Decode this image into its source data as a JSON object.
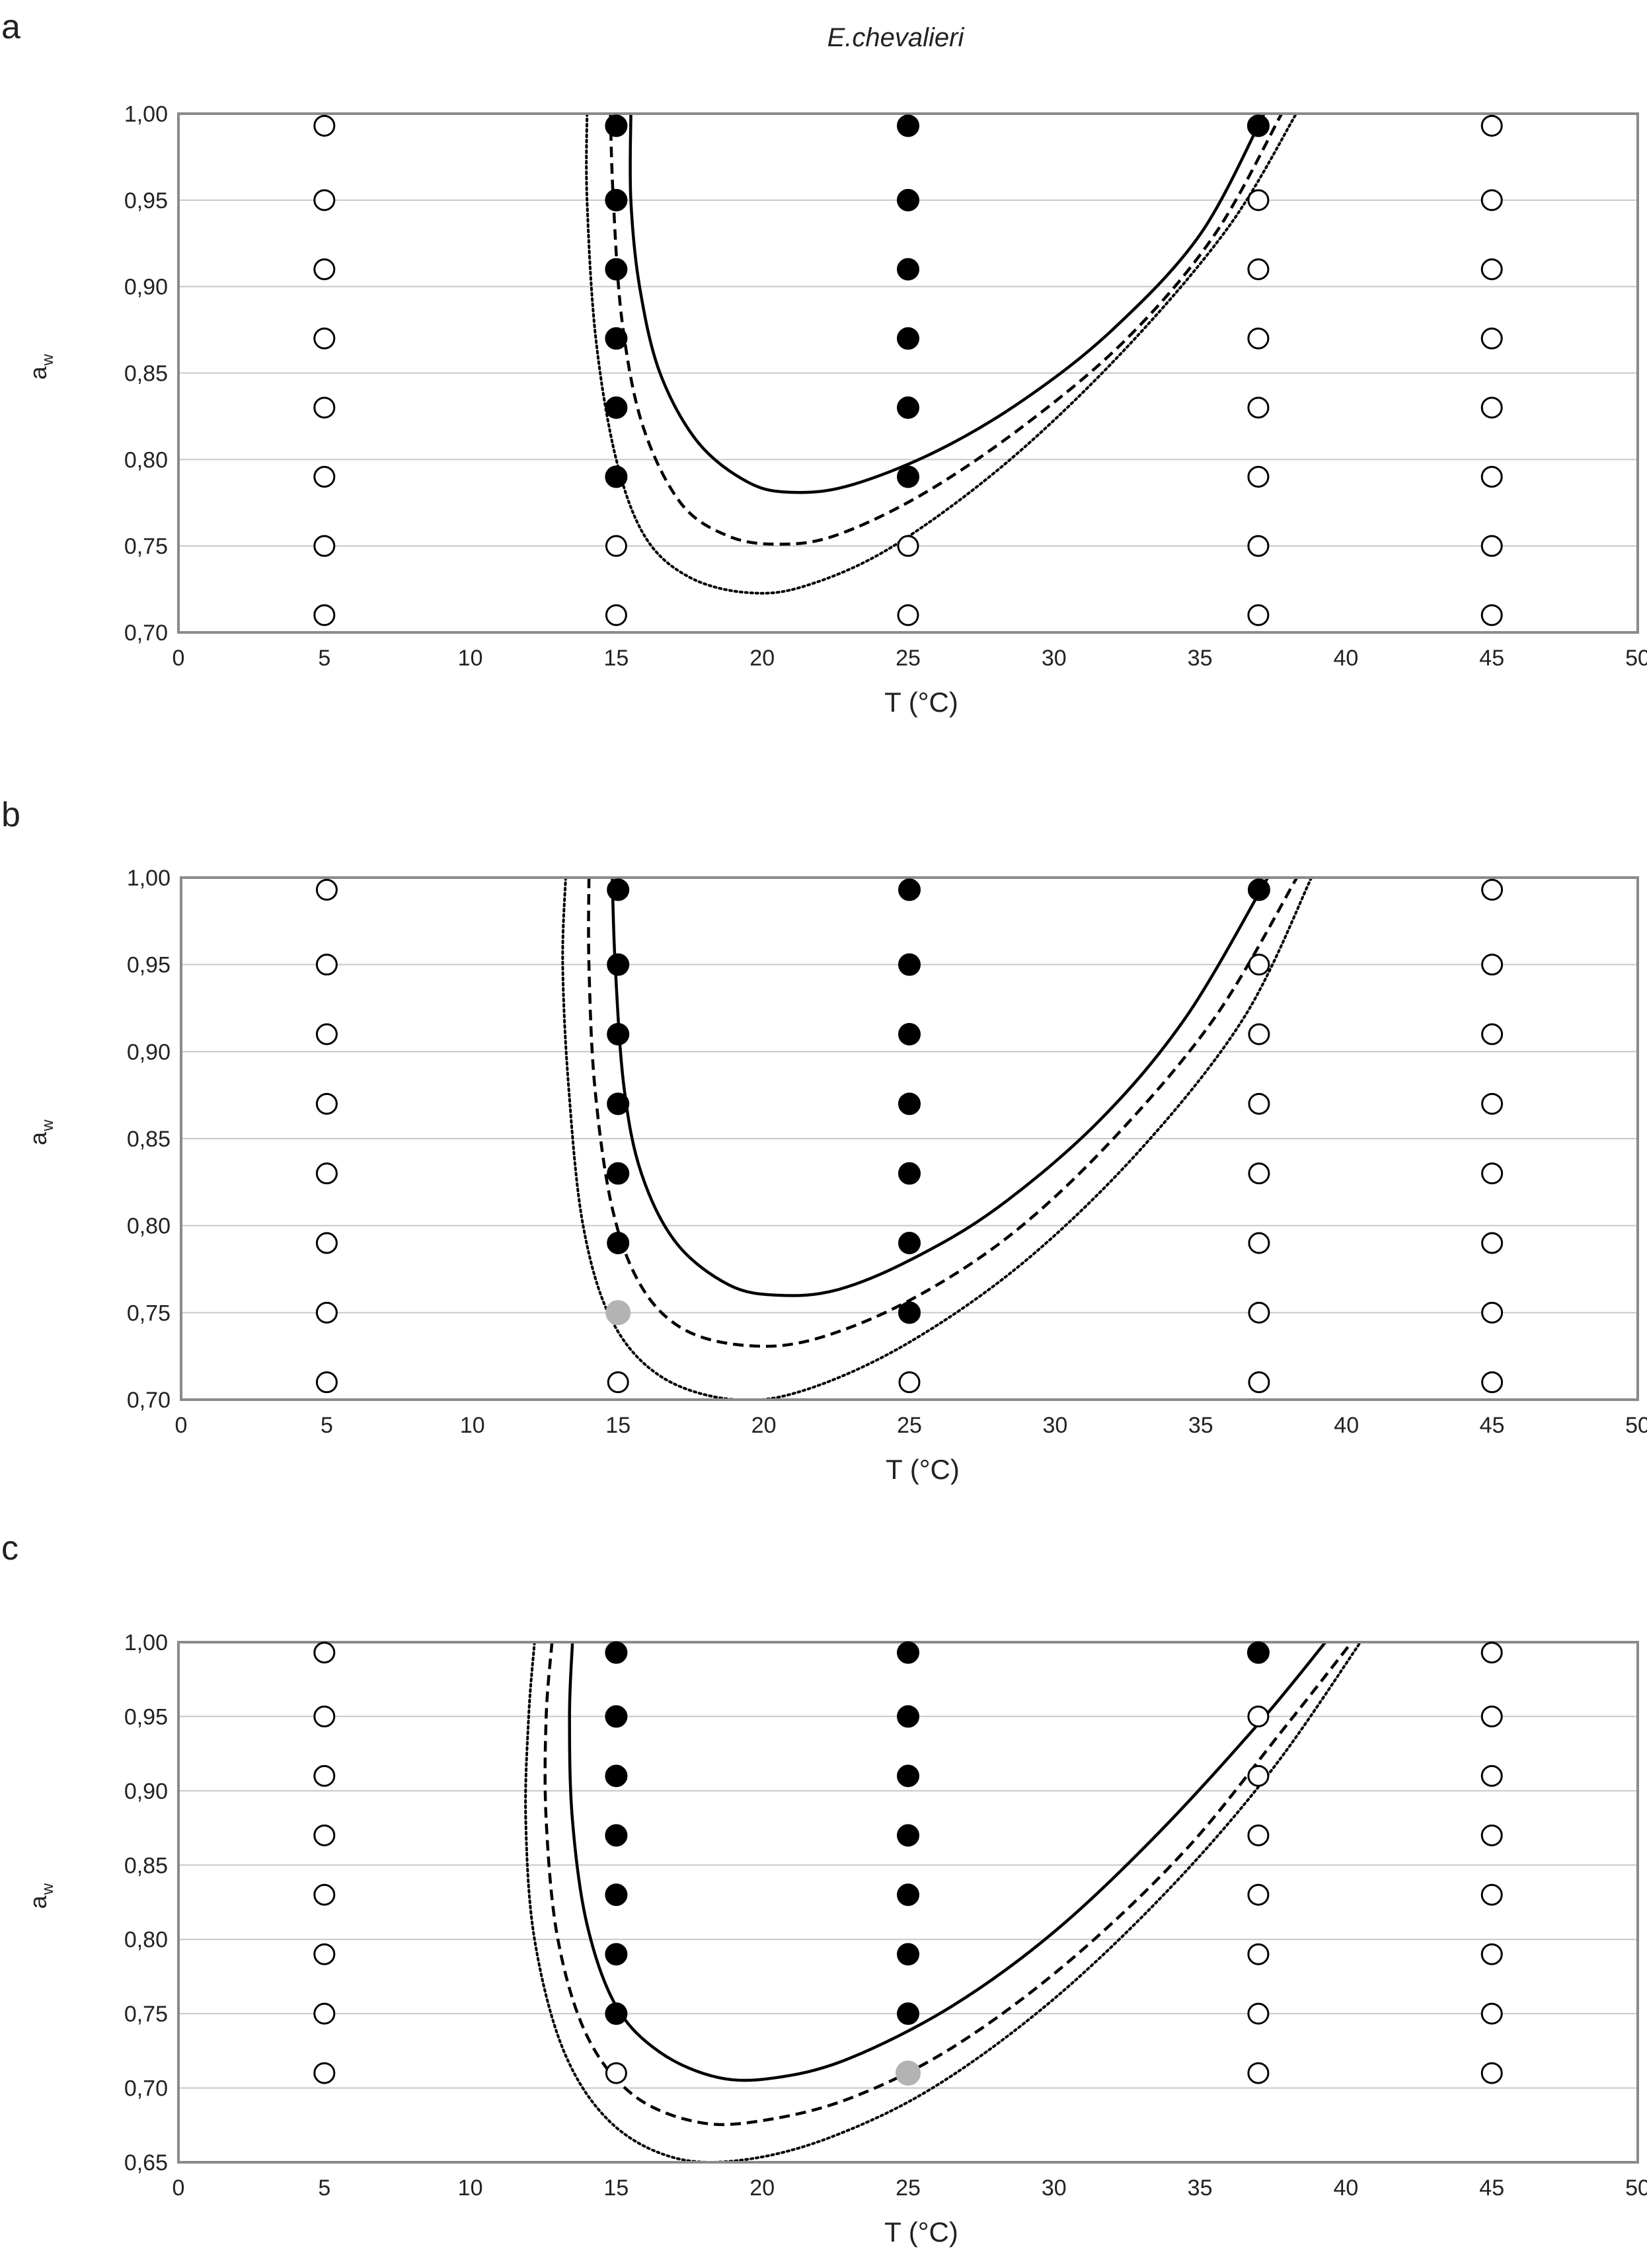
{
  "figure_title": "E.chevalieri",
  "colors": {
    "plot_border": "#8a8a8a",
    "grid": "#c8c8c8",
    "growth": "#000000",
    "partial": "#b3b3b3",
    "no_growth_edge": "#000000"
  },
  "chart_data": [
    {
      "panel_label": "a",
      "type": "scatter",
      "title": "E.chevalieri",
      "xlabel": "T (°C)",
      "ylabel": "a",
      "ylabel_sub": "w",
      "xlim": [
        0,
        50
      ],
      "ylim": [
        0.7,
        1.0
      ],
      "x_ticks": [
        0,
        5,
        10,
        15,
        20,
        25,
        30,
        35,
        40,
        45,
        50
      ],
      "x_tick_labels": [
        "0",
        "5",
        "10",
        "15",
        "20",
        "25",
        "30",
        "35",
        "40",
        "45",
        "50"
      ],
      "y_ticks": [
        0.7,
        0.75,
        0.8,
        0.85,
        0.9,
        0.95,
        1.0
      ],
      "y_tick_labels": [
        "0,70",
        "0,75",
        "0,80",
        "0,85",
        "0,90",
        "0,95",
        "1,00"
      ],
      "grid": true,
      "aw_levels": [
        0.993,
        0.95,
        0.91,
        0.87,
        0.83,
        0.79,
        0.75,
        0.71
      ],
      "columns": [
        {
          "T": 5,
          "states": [
            "none",
            "none",
            "none",
            "none",
            "none",
            "none",
            "none",
            "none"
          ]
        },
        {
          "T": 15,
          "states": [
            "growth",
            "growth",
            "growth",
            "growth",
            "growth",
            "growth",
            "none",
            "none"
          ]
        },
        {
          "T": 25,
          "states": [
            "growth",
            "growth",
            "growth",
            "growth",
            "growth",
            "growth",
            "none",
            "none"
          ]
        },
        {
          "T": 37,
          "states": [
            "growth",
            "none",
            "none",
            "none",
            "none",
            "none",
            "none",
            "none"
          ]
        },
        {
          "T": 45,
          "states": [
            "none",
            "none",
            "none",
            "none",
            "none",
            "none",
            "none",
            "none"
          ]
        }
      ],
      "boundaries": [
        {
          "style": "solid",
          "points": [
            [
              15.5,
              1.0
            ],
            [
              15.5,
              0.95
            ],
            [
              15.8,
              0.9
            ],
            [
              16.5,
              0.85
            ],
            [
              17.8,
              0.81
            ],
            [
              19.5,
              0.787
            ],
            [
              21.0,
              0.781
            ],
            [
              23.0,
              0.785
            ],
            [
              26.0,
              0.805
            ],
            [
              29.0,
              0.835
            ],
            [
              32.0,
              0.875
            ],
            [
              35.0,
              0.93
            ],
            [
              37.2,
              1.0
            ]
          ]
        },
        {
          "style": "dashed",
          "points": [
            [
              14.8,
              1.0
            ],
            [
              14.9,
              0.95
            ],
            [
              15.2,
              0.88
            ],
            [
              15.9,
              0.82
            ],
            [
              17.2,
              0.775
            ],
            [
              18.8,
              0.756
            ],
            [
              20.5,
              0.751
            ],
            [
              22.5,
              0.756
            ],
            [
              25.5,
              0.78
            ],
            [
              29.0,
              0.82
            ],
            [
              32.5,
              0.87
            ],
            [
              35.5,
              0.93
            ],
            [
              37.8,
              1.0
            ]
          ]
        },
        {
          "style": "dotted",
          "points": [
            [
              14.0,
              1.0
            ],
            [
              14.0,
              0.95
            ],
            [
              14.3,
              0.87
            ],
            [
              15.0,
              0.8
            ],
            [
              16.0,
              0.755
            ],
            [
              17.5,
              0.732
            ],
            [
              19.5,
              0.723
            ],
            [
              21.5,
              0.727
            ],
            [
              24.5,
              0.75
            ],
            [
              28.5,
              0.8
            ],
            [
              32.5,
              0.865
            ],
            [
              36.0,
              0.935
            ],
            [
              38.3,
              1.0
            ]
          ]
        }
      ]
    },
    {
      "panel_label": "b",
      "type": "scatter",
      "xlabel": "T (°C)",
      "ylabel": "a",
      "ylabel_sub": "w",
      "xlim": [
        0,
        50
      ],
      "ylim": [
        0.7,
        1.0
      ],
      "x_ticks": [
        0,
        5,
        10,
        15,
        20,
        25,
        30,
        35,
        40,
        45,
        50
      ],
      "x_tick_labels": [
        "0",
        "5",
        "10",
        "15",
        "20",
        "25",
        "30",
        "35",
        "40",
        "45",
        "50"
      ],
      "y_ticks": [
        0.7,
        0.75,
        0.8,
        0.85,
        0.9,
        0.95,
        1.0
      ],
      "y_tick_labels": [
        "0,70",
        "0,75",
        "0,80",
        "0,85",
        "0,90",
        "0,95",
        "1,00"
      ],
      "grid": true,
      "aw_levels": [
        0.993,
        0.95,
        0.91,
        0.87,
        0.83,
        0.79,
        0.75,
        0.71
      ],
      "columns": [
        {
          "T": 5,
          "states": [
            "none",
            "none",
            "none",
            "none",
            "none",
            "none",
            "none",
            "none"
          ]
        },
        {
          "T": 15,
          "states": [
            "growth",
            "growth",
            "growth",
            "growth",
            "growth",
            "growth",
            "partial",
            "none"
          ]
        },
        {
          "T": 25,
          "states": [
            "growth",
            "growth",
            "growth",
            "growth",
            "growth",
            "growth",
            "growth",
            "none"
          ]
        },
        {
          "T": 37,
          "states": [
            "growth",
            "none",
            "none",
            "none",
            "none",
            "none",
            "none",
            "none"
          ]
        },
        {
          "T": 45,
          "states": [
            "none",
            "none",
            "none",
            "none",
            "none",
            "none",
            "none",
            "none"
          ]
        }
      ],
      "boundaries": [
        {
          "style": "solid",
          "points": [
            [
              14.8,
              1.0
            ],
            [
              14.9,
              0.95
            ],
            [
              15.2,
              0.88
            ],
            [
              15.8,
              0.83
            ],
            [
              17.0,
              0.79
            ],
            [
              18.8,
              0.766
            ],
            [
              20.5,
              0.76
            ],
            [
              22.5,
              0.763
            ],
            [
              25.0,
              0.78
            ],
            [
              28.0,
              0.81
            ],
            [
              31.5,
              0.86
            ],
            [
              34.5,
              0.92
            ],
            [
              37.3,
              1.0
            ]
          ]
        },
        {
          "style": "dashed",
          "points": [
            [
              14.0,
              1.0
            ],
            [
              14.0,
              0.95
            ],
            [
              14.2,
              0.88
            ],
            [
              14.8,
              0.81
            ],
            [
              15.8,
              0.765
            ],
            [
              17.3,
              0.74
            ],
            [
              19.5,
              0.731
            ],
            [
              21.8,
              0.735
            ],
            [
              25.0,
              0.757
            ],
            [
              28.5,
              0.795
            ],
            [
              32.0,
              0.85
            ],
            [
              35.5,
              0.92
            ],
            [
              38.3,
              1.0
            ]
          ]
        },
        {
          "style": "dotted",
          "points": [
            [
              13.2,
              1.0
            ],
            [
              13.1,
              0.95
            ],
            [
              13.3,
              0.88
            ],
            [
              13.8,
              0.8
            ],
            [
              14.8,
              0.745
            ],
            [
              16.5,
              0.713
            ],
            [
              19.0,
              0.7
            ],
            [
              21.5,
              0.706
            ],
            [
              25.0,
              0.733
            ],
            [
              29.0,
              0.78
            ],
            [
              33.0,
              0.845
            ],
            [
              36.5,
              0.92
            ],
            [
              38.8,
              1.0
            ]
          ]
        }
      ]
    },
    {
      "panel_label": "c",
      "type": "scatter",
      "xlabel": "T (°C)",
      "ylabel": "a",
      "ylabel_sub": "w",
      "xlim": [
        0,
        50
      ],
      "ylim": [
        0.65,
        1.0
      ],
      "x_ticks": [
        0,
        5,
        10,
        15,
        20,
        25,
        30,
        35,
        40,
        45,
        50
      ],
      "x_tick_labels": [
        "0",
        "5",
        "10",
        "15",
        "20",
        "25",
        "30",
        "35",
        "40",
        "45",
        "50"
      ],
      "y_ticks": [
        0.65,
        0.7,
        0.75,
        0.8,
        0.85,
        0.9,
        0.95,
        1.0
      ],
      "y_tick_labels": [
        "0,65",
        "0,70",
        "0,75",
        "0,80",
        "0,85",
        "0,90",
        "0,95",
        "1,00"
      ],
      "grid": true,
      "aw_levels": [
        0.993,
        0.95,
        0.91,
        0.87,
        0.83,
        0.79,
        0.75,
        0.71
      ],
      "columns": [
        {
          "T": 5,
          "states": [
            "none",
            "none",
            "none",
            "none",
            "none",
            "none",
            "none",
            "none"
          ]
        },
        {
          "T": 15,
          "states": [
            "growth",
            "growth",
            "growth",
            "growth",
            "growth",
            "growth",
            "growth",
            "none"
          ]
        },
        {
          "T": 25,
          "states": [
            "growth",
            "growth",
            "growth",
            "growth",
            "growth",
            "growth",
            "growth",
            "partial"
          ]
        },
        {
          "T": 37,
          "states": [
            "growth",
            "none",
            "none",
            "none",
            "none",
            "none",
            "none",
            "none"
          ]
        },
        {
          "T": 45,
          "states": [
            "none",
            "none",
            "none",
            "none",
            "none",
            "none",
            "none",
            "none"
          ]
        }
      ],
      "boundaries": [
        {
          "style": "solid",
          "points": [
            [
              13.5,
              1.0
            ],
            [
              13.4,
              0.95
            ],
            [
              13.5,
              0.88
            ],
            [
              14.0,
              0.81
            ],
            [
              15.0,
              0.755
            ],
            [
              16.5,
              0.724
            ],
            [
              18.5,
              0.707
            ],
            [
              20.5,
              0.707
            ],
            [
              23.0,
              0.72
            ],
            [
              26.5,
              0.755
            ],
            [
              30.0,
              0.805
            ],
            [
              33.5,
              0.87
            ],
            [
              37.0,
              0.945
            ],
            [
              39.3,
              1.0
            ]
          ]
        },
        {
          "style": "dashed",
          "points": [
            [
              12.8,
              1.0
            ],
            [
              12.6,
              0.95
            ],
            [
              12.6,
              0.88
            ],
            [
              13.0,
              0.8
            ],
            [
              14.0,
              0.735
            ],
            [
              15.6,
              0.695
            ],
            [
              17.8,
              0.677
            ],
            [
              20.0,
              0.678
            ],
            [
              23.0,
              0.693
            ],
            [
              26.5,
              0.727
            ],
            [
              30.5,
              0.785
            ],
            [
              34.5,
              0.86
            ],
            [
              37.8,
              0.94
            ],
            [
              40.2,
              1.0
            ]
          ]
        },
        {
          "style": "dotted",
          "points": [
            [
              12.2,
              1.0
            ],
            [
              12.0,
              0.95
            ],
            [
              11.9,
              0.88
            ],
            [
              12.2,
              0.8
            ],
            [
              13.2,
              0.725
            ],
            [
              14.8,
              0.677
            ],
            [
              17.0,
              0.653
            ],
            [
              19.5,
              0.652
            ],
            [
              22.5,
              0.668
            ],
            [
              26.0,
              0.702
            ],
            [
              30.0,
              0.76
            ],
            [
              34.0,
              0.835
            ],
            [
              37.5,
              0.915
            ],
            [
              40.5,
              1.0
            ]
          ]
        }
      ]
    }
  ]
}
